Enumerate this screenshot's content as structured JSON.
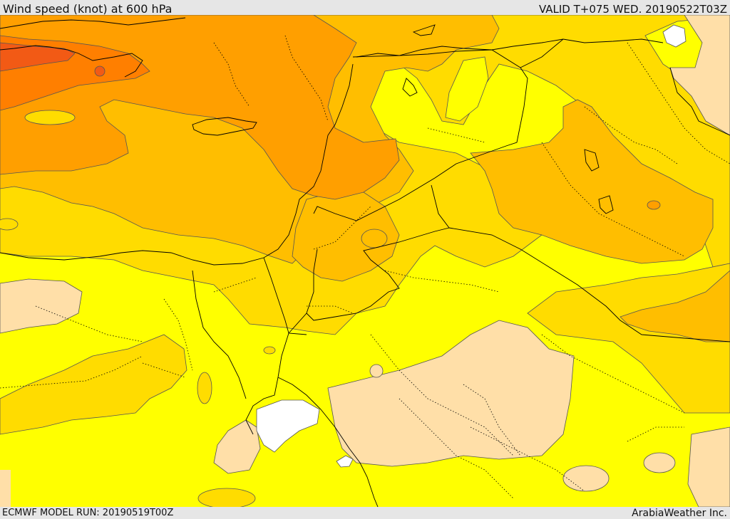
{
  "header": {
    "title": "Wind speed (knot) at 600 hPa",
    "valid_time": "VALID T+075 WED. 20190522T03Z"
  },
  "footer": {
    "model_run": "ECMWF MODEL RUN: 20190519T00Z",
    "credit": "ArabiaWeather Inc."
  },
  "map": {
    "field": "wind speed at 600 hPa",
    "colors": {
      "band_lowest": "#ffffff",
      "band_low": "#ffdfa8",
      "band_1": "#ffff00",
      "band_2": "#ffdc00",
      "band_3": "#ffbe00",
      "band_4": "#ff9f00",
      "band_5": "#ff7f00",
      "band_6": "#f25a15",
      "coast_border": "#000000",
      "contour_line": "#555555"
    }
  }
}
